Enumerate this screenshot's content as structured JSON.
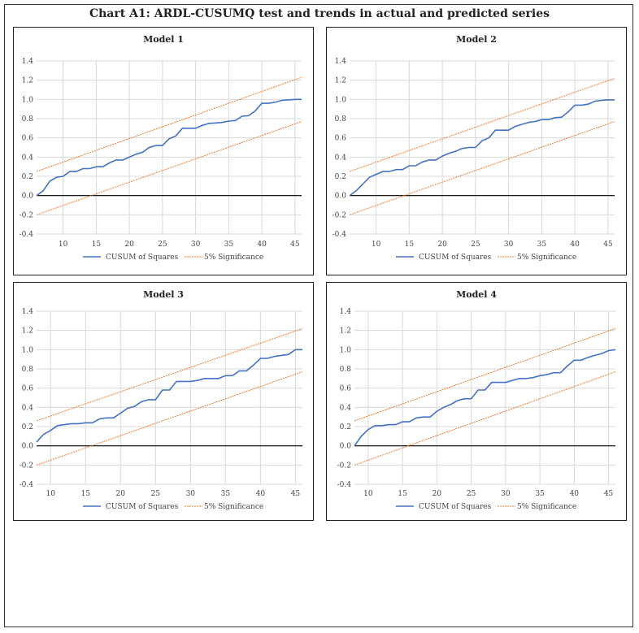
{
  "title": "Chart A1: ARDL-CUSUMQ test and trends in actual and predicted series",
  "colors": {
    "cusum": "#4472c4",
    "significance": "#ed7d31",
    "zero_line": "#000000",
    "grid": "#d9d9d9"
  },
  "chart_data": [
    {
      "type": "line",
      "title": "Model 1",
      "xlim": [
        6,
        46
      ],
      "ylim": [
        -0.4,
        1.4
      ],
      "xticks": [
        10,
        15,
        20,
        25,
        30,
        35,
        40,
        45
      ],
      "yticks": [
        "-0.4",
        "-0.2",
        "0.0",
        "0.2",
        "0.4",
        "0.6",
        "0.8",
        "1.0",
        "1.2",
        "1.4"
      ],
      "grid": true,
      "legend": "bottom",
      "x_start": 6,
      "series": [
        {
          "name": "CUSUM of Squares",
          "values": [
            0,
            0.05,
            0.15,
            0.19,
            0.2,
            0.25,
            0.25,
            0.28,
            0.28,
            0.3,
            0.3,
            0.34,
            0.37,
            0.37,
            0.4,
            0.43,
            0.45,
            0.5,
            0.52,
            0.52,
            0.59,
            0.62,
            0.7,
            0.7,
            0.7,
            0.73,
            0.75,
            0.755,
            0.76,
            0.775,
            0.78,
            0.825,
            0.83,
            0.88,
            0.96,
            0.96,
            0.97,
            0.99,
            0.995,
            1.0,
            1.0
          ]
        },
        {
          "name": "5% Significance",
          "upper": [
            0.25,
            1.23
          ],
          "lower": [
            -0.2,
            0.77
          ]
        }
      ]
    },
    {
      "type": "line",
      "title": "Model 2",
      "xlim": [
        6,
        46
      ],
      "ylim": [
        -0.4,
        1.4
      ],
      "xticks": [
        10,
        15,
        20,
        25,
        30,
        35,
        40,
        45
      ],
      "yticks": [
        "-0.4",
        "-0.2",
        "0.0",
        "0.2",
        "0.4",
        "0.6",
        "0.8",
        "1.0",
        "1.2",
        "1.4"
      ],
      "grid": true,
      "legend": "bottom",
      "x_start": 6,
      "series": [
        {
          "name": "CUSUM of Squares",
          "values": [
            0,
            0.05,
            0.12,
            0.19,
            0.22,
            0.25,
            0.25,
            0.27,
            0.27,
            0.31,
            0.31,
            0.35,
            0.37,
            0.37,
            0.41,
            0.44,
            0.46,
            0.49,
            0.5,
            0.5,
            0.57,
            0.6,
            0.68,
            0.68,
            0.68,
            0.72,
            0.74,
            0.76,
            0.77,
            0.79,
            0.79,
            0.81,
            0.815,
            0.87,
            0.94,
            0.94,
            0.95,
            0.98,
            0.99,
            0.995,
            0.995
          ]
        },
        {
          "name": "5% Significance",
          "upper": [
            0.25,
            1.22
          ],
          "lower": [
            -0.2,
            0.77
          ]
        }
      ]
    },
    {
      "type": "line",
      "title": "Model 3",
      "xlim": [
        8,
        46
      ],
      "ylim": [
        -0.4,
        1.4
      ],
      "xticks": [
        10,
        15,
        20,
        25,
        30,
        35,
        40,
        45
      ],
      "yticks": [
        "-0.4",
        "-0.2",
        "0.0",
        "0.2",
        "0.4",
        "0.6",
        "0.8",
        "1.0",
        "1.2",
        "1.4"
      ],
      "grid": true,
      "legend": "bottom",
      "x_start": 8,
      "series": [
        {
          "name": "CUSUM of Squares",
          "values": [
            0.04,
            0.12,
            0.16,
            0.21,
            0.22,
            0.23,
            0.23,
            0.24,
            0.24,
            0.28,
            0.29,
            0.29,
            0.34,
            0.39,
            0.41,
            0.46,
            0.48,
            0.48,
            0.58,
            0.58,
            0.67,
            0.67,
            0.67,
            0.68,
            0.7,
            0.7,
            0.7,
            0.73,
            0.73,
            0.78,
            0.78,
            0.84,
            0.91,
            0.91,
            0.93,
            0.94,
            0.95,
            1.0,
            1.0
          ]
        },
        {
          "name": "5% Significance",
          "upper": [
            0.26,
            1.22
          ],
          "lower": [
            -0.2,
            0.77
          ]
        }
      ]
    },
    {
      "type": "line",
      "title": "Model 4",
      "xlim": [
        8,
        46
      ],
      "ylim": [
        -0.4,
        1.4
      ],
      "xticks": [
        10,
        15,
        20,
        25,
        30,
        35,
        40,
        45
      ],
      "yticks": [
        "-0.4",
        "-0.2",
        "0.0",
        "0.2",
        "0.4",
        "0.6",
        "0.8",
        "1.0",
        "1.2",
        "1.4"
      ],
      "grid": true,
      "legend": "bottom",
      "x_start": 8,
      "series": [
        {
          "name": "CUSUM of Squares",
          "values": [
            0,
            0.1,
            0.17,
            0.21,
            0.21,
            0.22,
            0.22,
            0.25,
            0.25,
            0.29,
            0.3,
            0.3,
            0.36,
            0.4,
            0.43,
            0.47,
            0.49,
            0.49,
            0.58,
            0.58,
            0.66,
            0.66,
            0.66,
            0.68,
            0.7,
            0.7,
            0.71,
            0.73,
            0.74,
            0.76,
            0.76,
            0.83,
            0.89,
            0.89,
            0.92,
            0.94,
            0.96,
            0.99,
            1.0
          ]
        },
        {
          "name": "5% Significance",
          "upper": [
            0.26,
            1.22
          ],
          "lower": [
            -0.2,
            0.77
          ]
        }
      ]
    }
  ]
}
